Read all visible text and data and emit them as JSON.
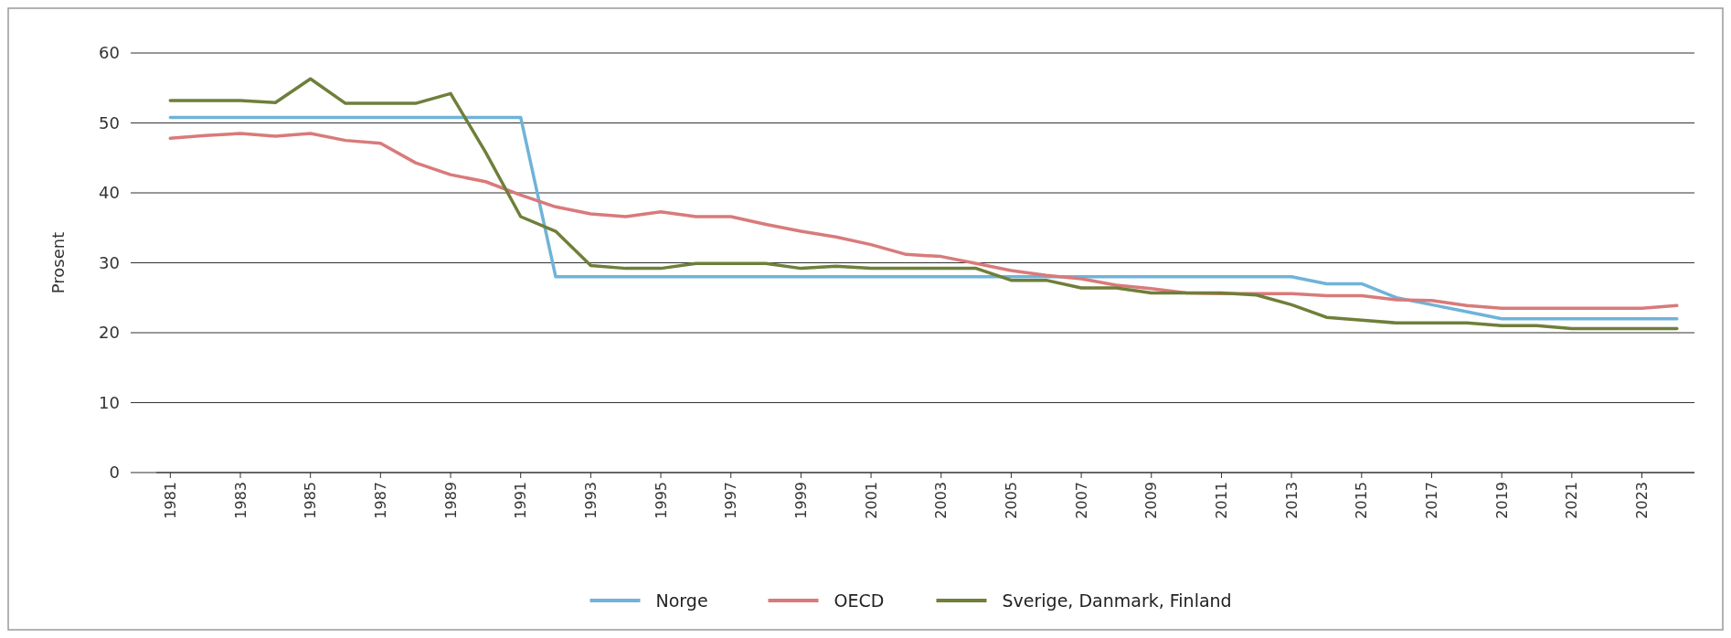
{
  "chart_data": {
    "type": "line",
    "ylabel": "Prosent",
    "x": [
      1981,
      1982,
      1983,
      1984,
      1985,
      1986,
      1987,
      1988,
      1989,
      1990,
      1991,
      1992,
      1993,
      1994,
      1995,
      1996,
      1997,
      1998,
      1999,
      2000,
      2001,
      2002,
      2003,
      2004,
      2005,
      2006,
      2007,
      2008,
      2009,
      2010,
      2011,
      2012,
      2013,
      2014,
      2015,
      2016,
      2017,
      2018,
      2019,
      2020,
      2021,
      2022,
      2023,
      2024
    ],
    "series": [
      {
        "name": "Norge",
        "color": "#6fb3d9",
        "values": [
          50.8,
          50.8,
          50.8,
          50.8,
          50.8,
          50.8,
          50.8,
          50.8,
          50.8,
          50.8,
          50.8,
          28,
          28,
          28,
          28,
          28,
          28,
          28,
          28,
          28,
          28,
          28,
          28,
          28,
          28,
          28,
          28,
          28,
          28,
          28,
          28,
          28,
          28,
          27,
          27,
          25,
          24,
          23,
          22,
          22,
          22,
          22,
          22,
          22
        ]
      },
      {
        "name": "OECD",
        "color": "#d97a7a",
        "values": [
          47.8,
          48.2,
          48.5,
          48.1,
          48.5,
          47.5,
          47.1,
          44.3,
          42.6,
          41.6,
          39.7,
          38,
          37,
          36.6,
          37.3,
          36.6,
          36.6,
          35.5,
          34.5,
          33.7,
          32.6,
          31.2,
          30.9,
          29.9,
          28.9,
          28.2,
          27.7,
          26.8,
          26.3,
          25.7,
          25.6,
          25.6,
          25.6,
          25.3,
          25.3,
          24.7,
          24.6,
          23.9,
          23.5,
          23.5,
          23.5,
          23.5,
          23.5,
          23.9
        ]
      },
      {
        "name": "Sverige, Danmark, Finland",
        "color": "#6e7f3a",
        "values": [
          53.2,
          53.2,
          53.2,
          52.9,
          56.3,
          52.8,
          52.8,
          52.8,
          54.2,
          45.8,
          36.6,
          34.5,
          29.6,
          29.2,
          29.2,
          29.9,
          29.9,
          29.9,
          29.2,
          29.5,
          29.2,
          29.2,
          29.2,
          29.2,
          27.5,
          27.5,
          26.4,
          26.4,
          25.7,
          25.7,
          25.7,
          25.4,
          24,
          22.2,
          21.8,
          21.4,
          21.4,
          21.4,
          21,
          21,
          20.6,
          20.6,
          20.6,
          20.6
        ]
      }
    ],
    "xlim": [
      1980.6,
      2024.5
    ],
    "xticks": [
      1981,
      1983,
      1985,
      1987,
      1989,
      1991,
      1993,
      1995,
      1997,
      1999,
      2001,
      2003,
      2005,
      2007,
      2009,
      2011,
      2013,
      2015,
      2017,
      2019,
      2021,
      2023
    ],
    "ylim": [
      0,
      60
    ],
    "yticks": [
      0,
      10,
      20,
      30,
      40,
      50,
      60
    ],
    "grid": "y",
    "legend": "bottom",
    "line_style": "solid",
    "marker": "none"
  }
}
